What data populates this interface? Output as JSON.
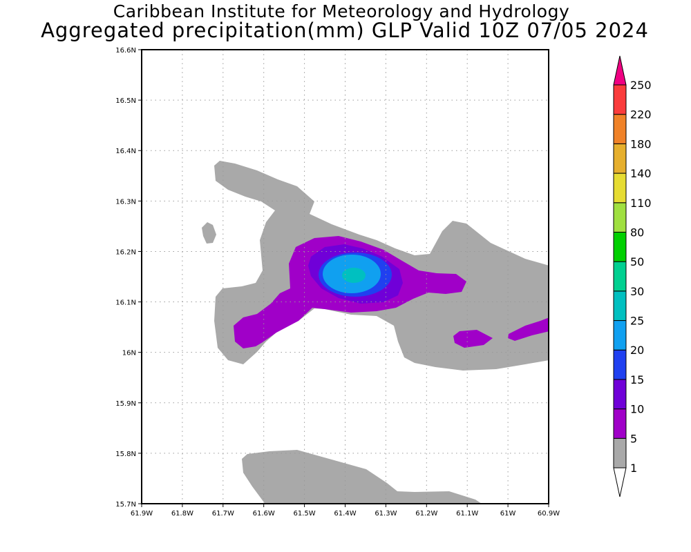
{
  "title": "Caribbean Institute for Meteorology and Hydrology",
  "subtitle": "Aggregated precipitation(mm) GLP Valid 10Z 07/05 2024",
  "map": {
    "lat_labels": [
      "16.6N",
      "16.5N",
      "16.4N",
      "16.3N",
      "16.2N",
      "16.1N",
      "16N",
      "15.9N",
      "15.8N",
      "15.7N"
    ],
    "lon_labels": [
      "61.9W",
      "61.8W",
      "61.7W",
      "61.6W",
      "61.5W",
      "61.4W",
      "61.3W",
      "61.2W",
      "61.1W",
      "61W",
      "60.9W"
    ],
    "lat_range": [
      15.7,
      16.6
    ],
    "lon_range": [
      -61.9,
      -60.9
    ],
    "grid": "dotted"
  },
  "colorbar": {
    "levels": [
      "1",
      "5",
      "10",
      "15",
      "20",
      "25",
      "30",
      "50",
      "80",
      "110",
      "140",
      "180",
      "220",
      "250"
    ],
    "colors": [
      "#a9a9a9",
      "#a000c8",
      "#7000d8",
      "#2040f0",
      "#10a0f0",
      "#00c0c0",
      "#00d090",
      "#00d000",
      "#a0e040",
      "#e6dc32",
      "#e6af2d",
      "#f08228",
      "#fa3c3c",
      "#f00082"
    ]
  }
}
